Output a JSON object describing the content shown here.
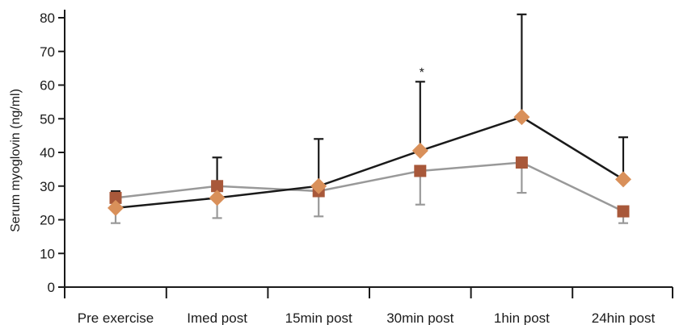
{
  "chart_data": {
    "type": "line",
    "title": "",
    "xlabel": "",
    "ylabel": "Serum myoglovin (ng/ml)",
    "ylim": [
      0,
      80
    ],
    "yticks": [
      0,
      10,
      20,
      30,
      40,
      50,
      60,
      70,
      80
    ],
    "categories": [
      "Pre exercise",
      "Imed post",
      "15min post",
      "30min post",
      "1hin post",
      "24hin post"
    ],
    "grid": false,
    "legend": "none",
    "series": [
      {
        "marker": "diamond",
        "color": "#1a1a1a",
        "marker_color": "#d9905a",
        "values": [
          23.5,
          26.5,
          30,
          40.5,
          50.5,
          32
        ],
        "error_upper": [
          28.5,
          38.5,
          44,
          61,
          81,
          44.5
        ],
        "error_lower": [
          null,
          null,
          null,
          null,
          null,
          null
        ]
      },
      {
        "marker": "square",
        "color": "#999999",
        "marker_color": "#a8583a",
        "values": [
          26.5,
          30,
          28.5,
          34.5,
          37,
          22.5
        ],
        "error_upper": [
          null,
          null,
          null,
          null,
          null,
          null
        ],
        "error_lower": [
          19,
          20.5,
          21,
          24.5,
          28,
          19
        ]
      }
    ],
    "annotations": [
      {
        "text": "*",
        "category": "30min post",
        "y": 64
      }
    ]
  }
}
